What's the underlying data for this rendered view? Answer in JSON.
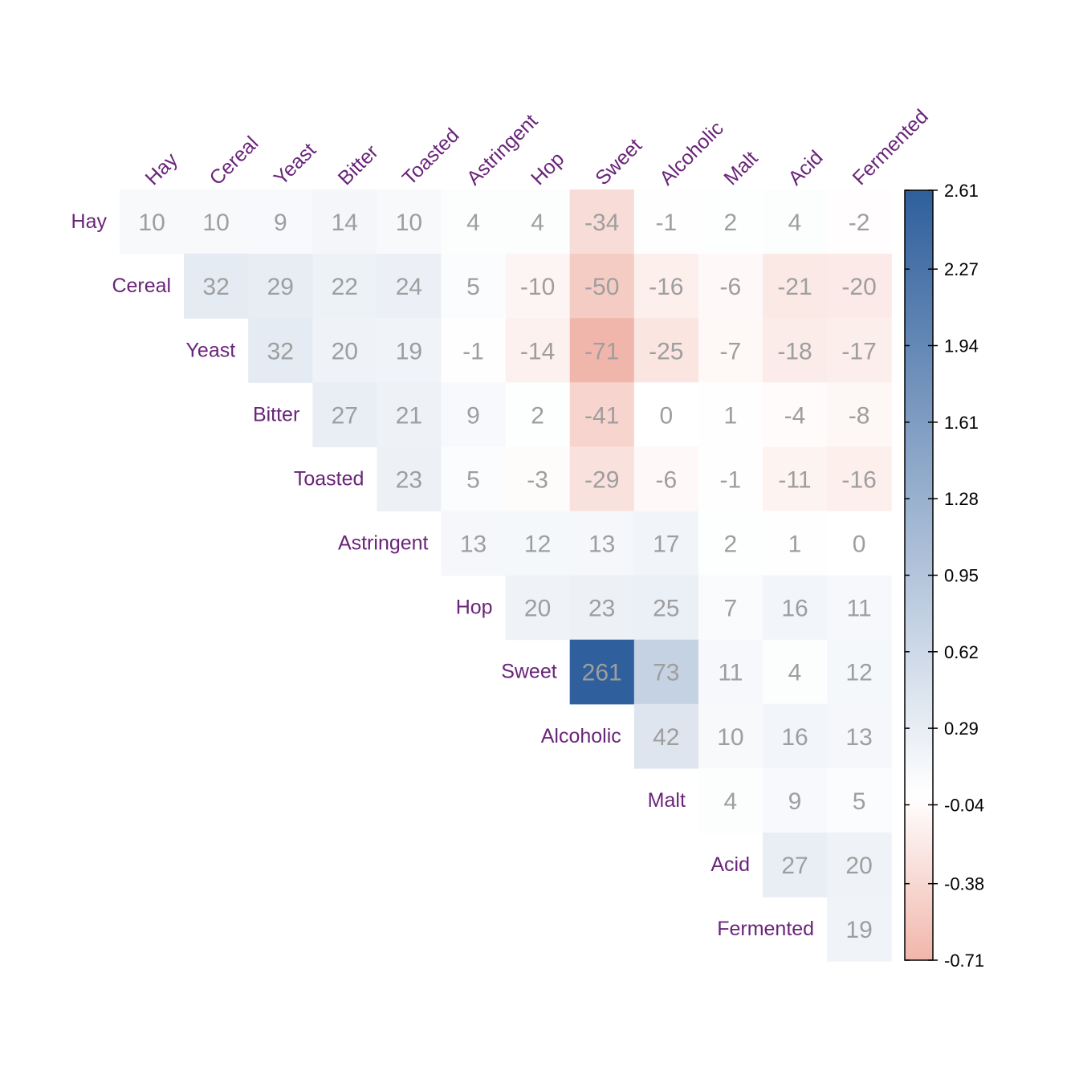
{
  "chart_data": {
    "type": "heatmap",
    "layout": "upper-triangular correlation matrix",
    "variables": [
      "Hay",
      "Cereal",
      "Yeast",
      "Bitter",
      "Toasted",
      "Astringent",
      "Hop",
      "Sweet",
      "Alcoholic",
      "Malt",
      "Acid",
      "Fermented"
    ],
    "cells": [
      [
        10,
        10,
        9,
        14,
        10,
        4,
        4,
        -34,
        -1,
        2,
        4,
        -2
      ],
      [
        null,
        32,
        29,
        22,
        24,
        5,
        -10,
        -50,
        -16,
        -6,
        -21,
        -20
      ],
      [
        null,
        null,
        32,
        20,
        19,
        -1,
        -14,
        -71,
        -25,
        -7,
        -18,
        -17
      ],
      [
        null,
        null,
        null,
        27,
        21,
        9,
        2,
        -41,
        0,
        1,
        -4,
        -8
      ],
      [
        null,
        null,
        null,
        null,
        23,
        5,
        -3,
        -29,
        -6,
        -1,
        -11,
        -16
      ],
      [
        null,
        null,
        null,
        null,
        null,
        13,
        12,
        13,
        17,
        2,
        1,
        0
      ],
      [
        null,
        null,
        null,
        null,
        null,
        null,
        20,
        23,
        25,
        7,
        16,
        11
      ],
      [
        null,
        null,
        null,
        null,
        null,
        null,
        null,
        261,
        73,
        11,
        4,
        12
      ],
      [
        null,
        null,
        null,
        null,
        null,
        null,
        null,
        null,
        42,
        10,
        16,
        13
      ],
      [
        null,
        null,
        null,
        null,
        null,
        null,
        null,
        null,
        null,
        4,
        9,
        5
      ],
      [
        null,
        null,
        null,
        null,
        null,
        null,
        null,
        null,
        null,
        null,
        27,
        20
      ],
      [
        null,
        null,
        null,
        null,
        null,
        null,
        null,
        null,
        null,
        null,
        null,
        19
      ]
    ],
    "color_scale_divisor": 100,
    "colorbar": {
      "min": -0.71,
      "max": 2.61,
      "ticks": [
        2.61,
        2.27,
        1.94,
        1.61,
        1.28,
        0.95,
        0.62,
        0.29,
        -0.04,
        -0.38,
        -0.71
      ],
      "tick_labels": [
        "2.61",
        "2.27",
        "1.94",
        "1.61",
        "1.28",
        "0.95",
        "0.62",
        "0.29",
        "-0.04",
        "-0.38",
        "-0.71"
      ],
      "colors": {
        "low": "#f1b6ab",
        "mid": "#ffffff",
        "high": "#2f5f9c"
      },
      "mid_value": 0
    },
    "label_color": "#6a2479",
    "value_text_color": "#9e9e9e",
    "grid": false,
    "legend": "colorbar-right"
  }
}
